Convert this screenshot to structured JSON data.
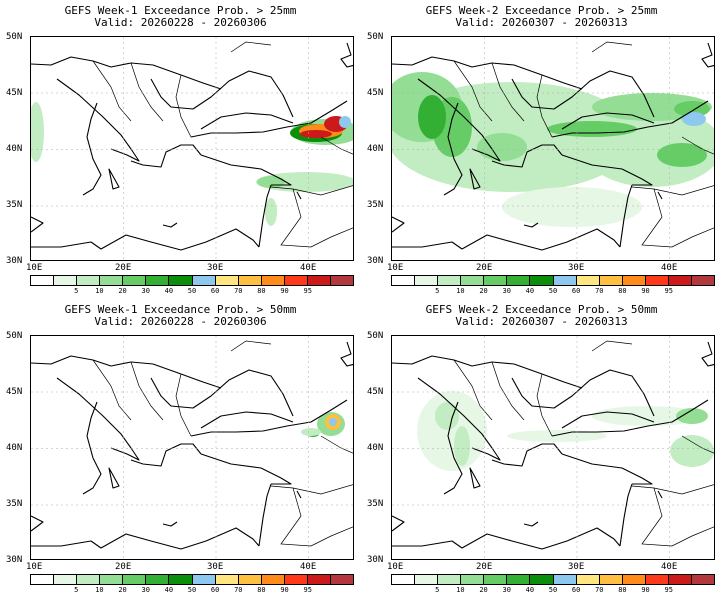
{
  "panels": [
    {
      "title": "GEFS Week-1 Exceedance Prob. > 25mm",
      "valid": "Valid: 20260228 - 20260306"
    },
    {
      "title": "GEFS Week-2 Exceedance Prob. > 25mm",
      "valid": "Valid: 20260307 - 20260313"
    },
    {
      "title": "GEFS Week-1 Exceedance Prob. > 50mm",
      "valid": "Valid: 20260228 - 20260306"
    },
    {
      "title": "GEFS Week-2 Exceedance Prob. > 50mm",
      "valid": "Valid: 20260307 - 20260313"
    }
  ],
  "axes": {
    "lat": [
      "50N",
      "45N",
      "40N",
      "35N",
      "30N"
    ],
    "lon": [
      "10E",
      "20E",
      "30E",
      "40E"
    ]
  },
  "colorbar": {
    "colors": [
      "#ffffff",
      "#e6f7e6",
      "#c2ecc2",
      "#94dd94",
      "#66cc66",
      "#33b033",
      "#0b8f0b",
      "#8ec8ee",
      "#ffe680",
      "#ffbf40",
      "#ff8c1a",
      "#ff3a1a",
      "#cc1a1a",
      "#b2383d"
    ],
    "labels": [
      "5",
      "10",
      "20",
      "30",
      "40",
      "50",
      "60",
      "70",
      "80",
      "90",
      "95"
    ]
  }
}
